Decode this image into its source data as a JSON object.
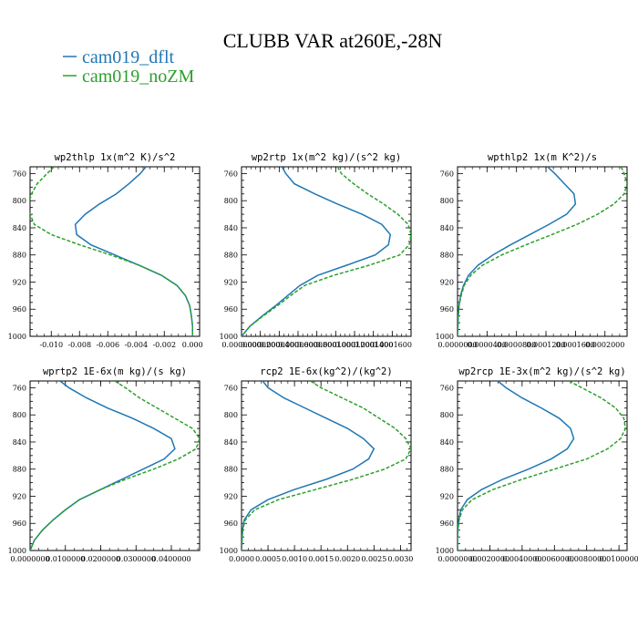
{
  "title": "CLUBB VAR at260E,-28N",
  "legend": [
    {
      "name": "cam019_dflt",
      "color": "#1f77b4"
    },
    {
      "name": "cam019_noZM",
      "color": "#2ca02c"
    }
  ],
  "chart_data": [
    {
      "type": "line",
      "title": "wp2thlp  1x(m^2 K)/s^2",
      "xlim": [
        -0.0115,
        0.0005
      ],
      "ylim": [
        1000,
        750
      ],
      "yticks": [
        760,
        800,
        840,
        880,
        920,
        960,
        1000
      ],
      "xticks": [
        -0.01,
        -0.008,
        -0.006,
        -0.004,
        -0.002,
        0.0
      ],
      "xtick_labels": [
        "-0.010",
        "-0.008",
        "-0.006",
        "-0.004",
        "-0.002",
        "0.000"
      ],
      "y": [
        750,
        760,
        775,
        790,
        805,
        820,
        835,
        850,
        865,
        880,
        895,
        910,
        925,
        940,
        955,
        970,
        985,
        1000
      ],
      "series": [
        {
          "name": "cam019_dflt",
          "values": [
            -0.0033,
            -0.0037,
            -0.0045,
            -0.0054,
            -0.0066,
            -0.0076,
            -0.0083,
            -0.0082,
            -0.0072,
            -0.0055,
            -0.0038,
            -0.0022,
            -0.0011,
            -0.0005,
            -0.0002,
            -8e-05,
            0.0,
            0.0
          ]
        },
        {
          "name": "cam019_noZM",
          "values": [
            -0.0098,
            -0.0103,
            -0.011,
            -0.0114,
            -0.0116,
            -0.0115,
            -0.0112,
            -0.01,
            -0.008,
            -0.0058,
            -0.0038,
            -0.0022,
            -0.0011,
            -0.0005,
            -0.0002,
            -8e-05,
            0.0,
            0.0
          ]
        }
      ]
    },
    {
      "type": "line",
      "title": "wp2rtp  1x(m^2 kg)/(s^2 kg)",
      "xlim": [
        0,
        0.00018
      ],
      "ylim": [
        1000,
        750
      ],
      "yticks": [
        760,
        800,
        840,
        880,
        920,
        960,
        1000
      ],
      "xticks": [
        0,
        2e-05,
        4e-05,
        6e-05,
        8e-05,
        0.0001,
        0.00012,
        0.00014,
        0.00016
      ],
      "xtick_labels": [
        "0.0000000",
        "0.0000200",
        "0.0000400",
        "0.0000600",
        "0.0000800",
        "0.0001000",
        "0.0001200",
        "0.0001400",
        "0.0001600"
      ],
      "y": [
        750,
        760,
        775,
        790,
        805,
        820,
        835,
        850,
        865,
        880,
        895,
        910,
        925,
        940,
        955,
        970,
        985,
        1000
      ],
      "series": [
        {
          "name": "cam019_dflt",
          "values": [
            4.3e-05,
            4.7e-05,
            5.6e-05,
            7.8e-05,
            0.000102,
            0.000128,
            0.000149,
            0.000158,
            0.000156,
            0.000142,
            0.000112,
            8.1e-05,
            6.2e-05,
            4.9e-05,
            3.6e-05,
            2.2e-05,
            9e-06,
            0.0
          ]
        },
        {
          "name": "cam019_noZM",
          "values": [
            0.000102,
            0.000106,
            0.000119,
            0.000134,
            0.000151,
            0.000166,
            0.000177,
            0.00018,
            0.000178,
            0.000168,
            0.000136,
            9.8e-05,
            6.7e-05,
            5.2e-05,
            3.8e-05,
            2.3e-05,
            9e-06,
            0.0
          ]
        }
      ]
    },
    {
      "type": "line",
      "title": "wpthlp2  1x(m K^2)/s",
      "xlim": [
        0,
        0.00023
      ],
      "ylim": [
        1000,
        750
      ],
      "yticks": [
        760,
        800,
        840,
        880,
        920,
        960,
        1000
      ],
      "xticks": [
        0,
        4e-05,
        8e-05,
        0.00012,
        0.00016,
        0.0002
      ],
      "xtick_labels": [
        "0.0000000",
        "0.0000400",
        "0.0000800",
        "0.0001200",
        "0.0001600",
        "0.0002000"
      ],
      "y": [
        750,
        760,
        775,
        790,
        805,
        820,
        835,
        850,
        865,
        880,
        895,
        910,
        925,
        940,
        955,
        970,
        985,
        1000
      ],
      "series": [
        {
          "name": "cam019_dflt",
          "values": [
            0.000122,
            0.000132,
            0.000145,
            0.000158,
            0.00016,
            0.000148,
            0.000124,
            9.8e-05,
            7.2e-05,
            4.8e-05,
            2.8e-05,
            1.5e-05,
            8e-06,
            4e-06,
            2e-06,
            1e-06,
            5e-07,
            0.0
          ]
        },
        {
          "name": "cam019_noZM",
          "values": [
            0.000222,
            0.000226,
            0.00023,
            0.000226,
            0.000212,
            0.00019,
            0.000162,
            0.000128,
            9.3e-05,
            6e-05,
            3.4e-05,
            1.8e-05,
            9e-06,
            5e-06,
            2e-06,
            1e-06,
            5e-07,
            0.0
          ]
        }
      ]
    },
    {
      "type": "line",
      "title": "wprtp2  1E-6x(m kg)/(s kg)",
      "xlim": [
        0,
        0.048
      ],
      "ylim": [
        1000,
        750
      ],
      "yticks": [
        760,
        800,
        840,
        880,
        920,
        960,
        1000
      ],
      "xticks": [
        0,
        0.01,
        0.02,
        0.03,
        0.04
      ],
      "xtick_labels": [
        "0.0000000",
        "0.0100000",
        "0.0200000",
        "0.0300000",
        "0.0400000"
      ],
      "y": [
        750,
        760,
        775,
        790,
        805,
        820,
        835,
        850,
        865,
        880,
        895,
        910,
        925,
        940,
        955,
        970,
        985,
        1000
      ],
      "series": [
        {
          "name": "cam019_dflt",
          "values": [
            0.0085,
            0.011,
            0.016,
            0.022,
            0.029,
            0.035,
            0.04,
            0.041,
            0.038,
            0.032,
            0.026,
            0.02,
            0.014,
            0.01,
            0.0065,
            0.0035,
            0.0012,
            0.0
          ]
        },
        {
          "name": "cam019_noZM",
          "values": [
            0.024,
            0.027,
            0.031,
            0.036,
            0.041,
            0.046,
            0.048,
            0.047,
            0.042,
            0.035,
            0.027,
            0.02,
            0.014,
            0.01,
            0.0065,
            0.0035,
            0.0012,
            0.0
          ]
        }
      ]
    },
    {
      "type": "line",
      "title": "rcp2  1E-6x(kg^2)/(kg^2)",
      "xlim": [
        0,
        0.0032
      ],
      "ylim": [
        1000,
        750
      ],
      "yticks": [
        760,
        800,
        840,
        880,
        920,
        960,
        1000
      ],
      "xticks": [
        0,
        0.0005,
        0.001,
        0.0015,
        0.002,
        0.0025,
        0.003
      ],
      "xtick_labels": [
        "0.0000",
        "0.0005",
        "0.0010",
        "0.0015",
        "0.0020",
        "0.0025",
        "0.0030"
      ],
      "y": [
        750,
        760,
        775,
        790,
        805,
        820,
        835,
        850,
        865,
        880,
        895,
        910,
        925,
        940,
        955,
        970,
        985,
        1000
      ],
      "series": [
        {
          "name": "cam019_dflt",
          "values": [
            0.0004,
            0.0005,
            0.0008,
            0.0012,
            0.0016,
            0.002,
            0.0023,
            0.0025,
            0.0024,
            0.0021,
            0.0016,
            0.001,
            0.0005,
            0.00018,
            5e-05,
            2e-05,
            1e-05,
            0.0
          ]
        },
        {
          "name": "cam019_noZM",
          "values": [
            0.0013,
            0.0015,
            0.0019,
            0.0023,
            0.0026,
            0.0029,
            0.0031,
            0.0032,
            0.0031,
            0.0027,
            0.0021,
            0.0014,
            0.0007,
            0.00025,
            7e-05,
            2e-05,
            1e-05,
            0.0
          ]
        }
      ]
    },
    {
      "type": "line",
      "title": "wp2rcp  1E-3x(m^2 kg)/(s^2 kg)",
      "xlim": [
        0,
        0.0105
      ],
      "ylim": [
        1000,
        750
      ],
      "yticks": [
        760,
        800,
        840,
        880,
        920,
        960,
        1000
      ],
      "xticks": [
        0,
        0.002,
        0.004,
        0.006,
        0.008,
        0.01
      ],
      "xtick_labels": [
        "0.0000000",
        "0.0020000",
        "0.0040000",
        "0.0060000",
        "0.0080000",
        "0.0100000"
      ],
      "y": [
        750,
        760,
        775,
        790,
        805,
        820,
        835,
        850,
        865,
        880,
        895,
        910,
        925,
        940,
        955,
        970,
        985,
        1000
      ],
      "series": [
        {
          "name": "cam019_dflt",
          "values": [
            0.0025,
            0.003,
            0.004,
            0.0052,
            0.0063,
            0.007,
            0.0072,
            0.0068,
            0.0058,
            0.0044,
            0.0028,
            0.0015,
            0.0006,
            0.0002,
            7e-05,
            2e-05,
            0.0,
            0.0
          ]
        },
        {
          "name": "cam019_noZM",
          "values": [
            0.0069,
            0.0077,
            0.0089,
            0.0098,
            0.0103,
            0.0104,
            0.0101,
            0.0093,
            0.008,
            0.006,
            0.004,
            0.0022,
            0.0009,
            0.0003,
            0.0001,
            3e-05,
            0.0,
            0.0
          ]
        }
      ]
    }
  ]
}
